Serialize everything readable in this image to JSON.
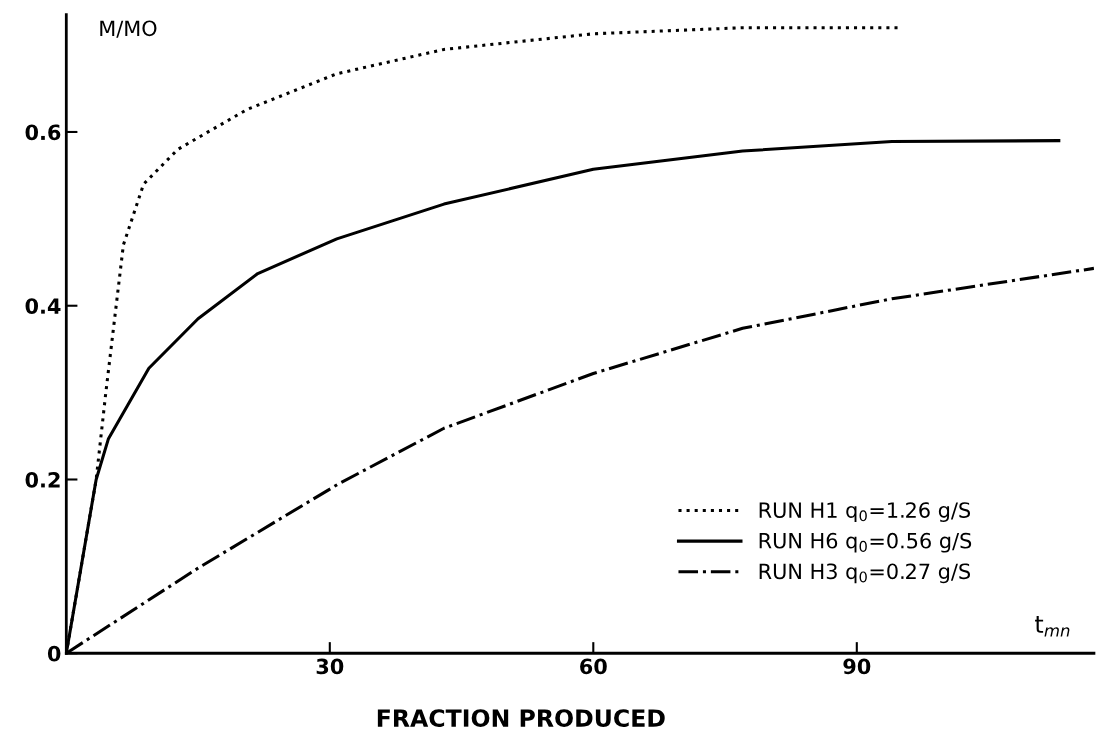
{
  "chart_data": {
    "type": "line",
    "xlabel": "t$_{mn}$",
    "ylabel": "M/MO",
    "annotations": [
      "FRACTION PRODUCED"
    ],
    "xlim": [
      0,
      117
    ],
    "ylim": [
      0,
      0.735
    ],
    "xticks": [
      30,
      60,
      90
    ],
    "yticks": [
      0,
      0.2,
      0.4,
      0.6
    ],
    "grid": false,
    "legend": "bottom right",
    "marker": "none",
    "series": [
      {
        "name": "RUN H1 q$_{0}$=1.26 g/S",
        "color": "#000000",
        "line_style": "dotted",
        "x": [
          0,
          3.4,
          4.5,
          6.5,
          8.8,
          12.7,
          20.6,
          30.8,
          43,
          60,
          77,
          95
        ],
        "values": [
          0,
          0.2,
          0.3,
          0.47,
          0.54,
          0.58,
          0.626,
          0.667,
          0.695,
          0.713,
          0.72,
          0.72
        ]
      },
      {
        "name": "RUN H6 q$_{0}$=0.56 g/S",
        "color": "#000000",
        "line_style": "solid",
        "x": [
          0,
          3.4,
          4.8,
          9.4,
          15,
          21.8,
          30.8,
          43,
          60,
          77,
          94,
          113
        ],
        "values": [
          0,
          0.2,
          0.247,
          0.328,
          0.385,
          0.437,
          0.477,
          0.517,
          0.557,
          0.578,
          0.589,
          0.59
        ]
      },
      {
        "name": "RUN H3 q$_{0}$=0.27 g/S",
        "color": "#000000",
        "line_style": "dashdot",
        "x": [
          0,
          15,
          31,
          43,
          60,
          77,
          94,
          117
        ],
        "values": [
          0,
          0.098,
          0.195,
          0.259,
          0.322,
          0.374,
          0.408,
          0.443
        ]
      }
    ]
  }
}
